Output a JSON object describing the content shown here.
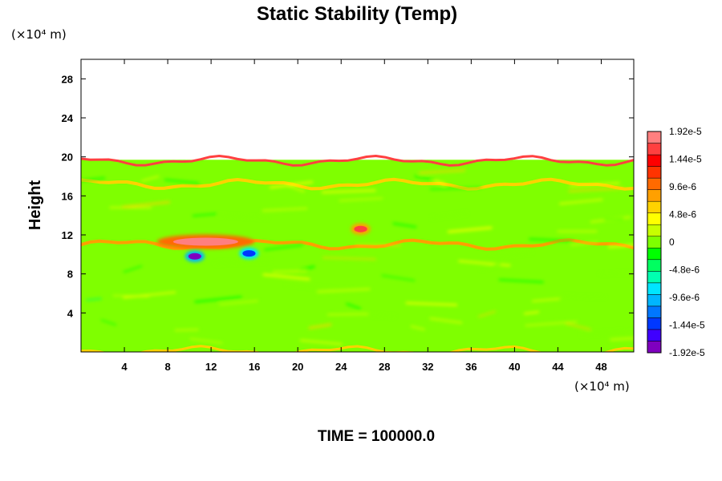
{
  "chart_data": {
    "type": "heatmap",
    "title": "Static Stability (Temp)",
    "xlabel": "",
    "ylabel": "Height",
    "x_unit": "(×10⁴ m)",
    "y_unit": "(×10⁴ m)",
    "xlim": [
      0,
      51
    ],
    "ylim": [
      0,
      30
    ],
    "x_ticks": [
      4,
      8,
      12,
      16,
      20,
      24,
      28,
      32,
      36,
      40,
      44,
      48
    ],
    "x_tick_labels": [
      "4",
      "8",
      "12",
      "16",
      "20",
      "24",
      "28",
      "32",
      "36",
      "40",
      "44",
      "48"
    ],
    "y_ticks": [
      4,
      8,
      12,
      16,
      20,
      24,
      28
    ],
    "y_tick_labels": [
      "4",
      "8",
      "12",
      "16",
      "20",
      "24",
      "28"
    ],
    "data_top": 19.7,
    "colorbar": {
      "min": -1.92e-05,
      "max": 1.92e-05,
      "tick_values": [
        1.92e-05,
        1.44e-05,
        9.6e-06,
        4.8e-06,
        0,
        -4.8e-06,
        -9.6e-06,
        -1.44e-05,
        -1.92e-05
      ],
      "tick_labels": [
        "1.92e-5",
        "1.44e-5",
        "9.6e-6",
        "4.8e-6",
        "0",
        "-4.8e-6",
        "-9.6e-6",
        "-1.44e-5",
        "-1.92e-5"
      ],
      "colors": [
        "#7f00bf",
        "#3f00ff",
        "#0038ff",
        "#0077ff",
        "#00b6ff",
        "#00e5ff",
        "#00ffb0",
        "#00ff60",
        "#00ff00",
        "#7fff00",
        "#c8ff00",
        "#ffff00",
        "#ffd200",
        "#ffa000",
        "#ff6a00",
        "#ff3300",
        "#ff0000",
        "#ff4040",
        "#ff7f7f"
      ]
    },
    "features": [
      {
        "kind": "band",
        "name": "tropopause-layer",
        "y_center": 11.0,
        "value": 8e-06
      },
      {
        "kind": "band",
        "name": "upper-layer",
        "y_center": 17.2,
        "value": 6.5e-06
      },
      {
        "kind": "band",
        "name": "top-boundary",
        "y_center": 19.6,
        "value": 1.6e-05
      },
      {
        "kind": "band",
        "name": "bottom-boundary",
        "y_center": 0.1,
        "value": 7e-06
      },
      {
        "kind": "blob",
        "name": "strong-stability-core",
        "x": 11.5,
        "y": 11.3,
        "value": 1.8e-05
      },
      {
        "kind": "blob",
        "name": "secondary-core",
        "x": 25.8,
        "y": 12.6,
        "value": 1.6e-05
      },
      {
        "kind": "blob",
        "name": "unstable-spots",
        "x": 10.5,
        "y": 9.8,
        "value": -1.9e-05
      },
      {
        "kind": "blob",
        "name": "unstable-spot-east",
        "x": 15.5,
        "y": 10.1,
        "value": -1.5e-05
      }
    ],
    "annotation": "TIME = 100000.0"
  }
}
